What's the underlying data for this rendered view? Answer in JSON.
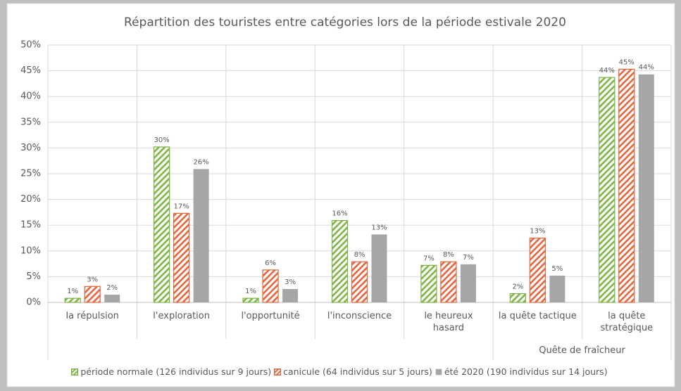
{
  "chart_data": {
    "type": "bar",
    "title": "Répartition des touristes entre catégories lors de la période estivale 2020",
    "categories": [
      "la répulsion",
      "l'exploration",
      "l'opportunité",
      "l'inconscience",
      "le heureux hasard",
      "la quête tactique",
      "la quête stratégique"
    ],
    "category_groups": [
      {
        "name": "Quête de fraîcheur",
        "start": 5,
        "end": 6
      }
    ],
    "series": [
      {
        "name": "période normale (126 individus sur 9 jours)",
        "color": "#7cb342",
        "hatch": true,
        "values": [
          0.8,
          30.2,
          0.8,
          15.9,
          7.2,
          1.7,
          43.7
        ],
        "value_labels": [
          "1%",
          "30%",
          "1%",
          "16%",
          "7%",
          "2%",
          "44%"
        ]
      },
      {
        "name": "canicule (64 individus sur 5 jours)",
        "color": "#e2643d",
        "hatch": true,
        "values": [
          3.1,
          17.3,
          6.3,
          7.9,
          7.9,
          12.5,
          45.3
        ],
        "value_labels": [
          "3%",
          "17%",
          "6%",
          "8%",
          "8%",
          "13%",
          "45%"
        ]
      },
      {
        "name": "été 2020 (190 individus sur 14 jours)",
        "color": "#a6a6a6",
        "hatch": false,
        "values": [
          1.5,
          25.9,
          2.6,
          13.2,
          7.4,
          5.2,
          44.3
        ],
        "value_labels": [
          "2%",
          "26%",
          "3%",
          "13%",
          "7%",
          "5%",
          "44%"
        ]
      }
    ],
    "ylim": [
      0,
      50
    ],
    "yticks": [
      {
        "value": 0,
        "label": "0%"
      },
      {
        "value": 5,
        "label": "5%"
      },
      {
        "value": 10,
        "label": "10%"
      },
      {
        "value": 15,
        "label": "15%"
      },
      {
        "value": 20,
        "label": "20%"
      },
      {
        "value": 25,
        "label": "25%"
      },
      {
        "value": 30,
        "label": "30%"
      },
      {
        "value": 35,
        "label": "35%"
      },
      {
        "value": 40,
        "label": "40%"
      },
      {
        "value": 45,
        "label": "45%"
      },
      {
        "value": 50,
        "label": "50%"
      }
    ],
    "grid": true,
    "legend": "bottom"
  }
}
